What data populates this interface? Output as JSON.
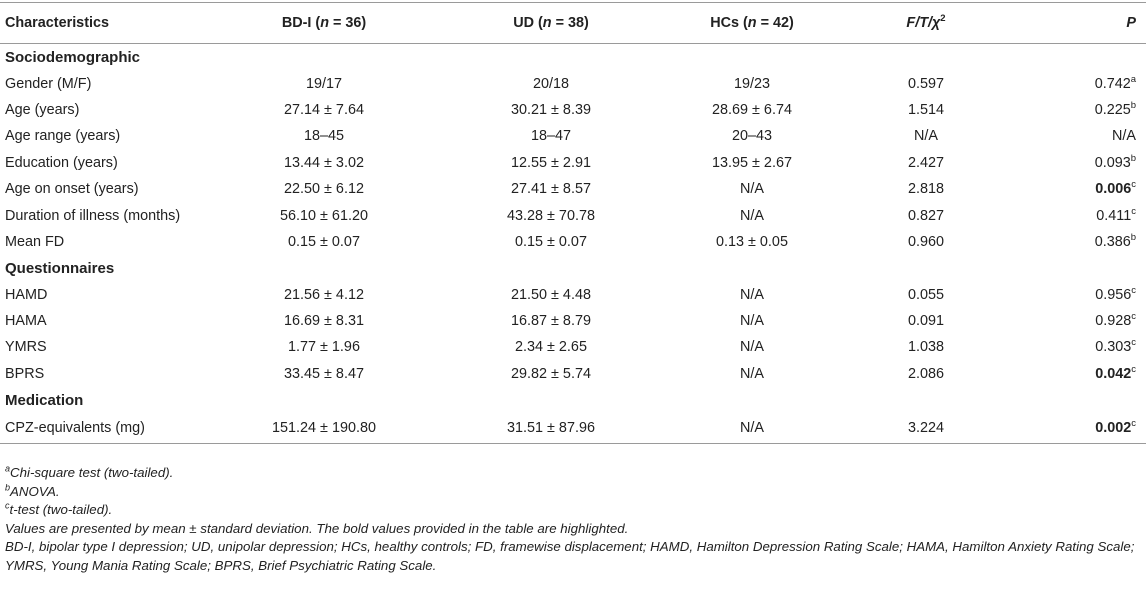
{
  "table": {
    "headers": [
      {
        "parts": [
          {
            "t": "Characteristics"
          }
        ]
      },
      {
        "parts": [
          {
            "t": "BD-I ("
          },
          {
            "t": "n",
            "i": true
          },
          {
            "t": " = 36)"
          }
        ]
      },
      {
        "parts": [
          {
            "t": "UD ("
          },
          {
            "t": "n",
            "i": true
          },
          {
            "t": " = 38)"
          }
        ]
      },
      {
        "parts": [
          {
            "t": "HCs ("
          },
          {
            "t": "n",
            "i": true
          },
          {
            "t": " = 42)"
          }
        ]
      },
      {
        "parts": [
          {
            "t": "F/T/χ",
            "i": true
          },
          {
            "t": "2",
            "sup": true
          }
        ]
      },
      {
        "parts": [
          {
            "t": "P",
            "i": true
          }
        ]
      }
    ],
    "sections": [
      {
        "title": "Sociodemographic",
        "rows": [
          {
            "label": "Gender (M/F)",
            "bd": "19/17",
            "ud": "20/18",
            "hc": "19/23",
            "stat": "0.597",
            "p": "0.742",
            "p_sup": "a",
            "p_bold": false
          },
          {
            "label": "Age (years)",
            "bd": "27.14 ± 7.64",
            "ud": "30.21 ± 8.39",
            "hc": "28.69 ± 6.74",
            "stat": "1.514",
            "p": "0.225",
            "p_sup": "b",
            "p_bold": false
          },
          {
            "label": "Age range (years)",
            "bd": "18–45",
            "ud": "18–47",
            "hc": "20–43",
            "stat": "N/A",
            "p": "N/A",
            "p_sup": "",
            "p_bold": false
          },
          {
            "label": "Education (years)",
            "bd": "13.44 ± 3.02",
            "ud": "12.55 ± 2.91",
            "hc": "13.95 ± 2.67",
            "stat": "2.427",
            "p": "0.093",
            "p_sup": "b",
            "p_bold": false
          },
          {
            "label": "Age on onset (years)",
            "bd": "22.50 ± 6.12",
            "ud": "27.41 ± 8.57",
            "hc": "N/A",
            "stat": "2.818",
            "p": "0.006",
            "p_sup": "c",
            "p_bold": true
          },
          {
            "label": "Duration of illness (months)",
            "bd": "56.10 ± 61.20",
            "ud": "43.28 ± 70.78",
            "hc": "N/A",
            "stat": "0.827",
            "p": "0.411",
            "p_sup": "c",
            "p_bold": false
          },
          {
            "label": "Mean FD",
            "bd": "0.15 ± 0.07",
            "ud": "0.15 ± 0.07",
            "hc": "0.13 ± 0.05",
            "stat": "0.960",
            "p": "0.386",
            "p_sup": "b",
            "p_bold": false
          }
        ]
      },
      {
        "title": "Questionnaires",
        "rows": [
          {
            "label": "HAMD",
            "bd": "21.56 ± 4.12",
            "ud": "21.50 ± 4.48",
            "hc": "N/A",
            "stat": "0.055",
            "p": "0.956",
            "p_sup": "c",
            "p_bold": false
          },
          {
            "label": "HAMA",
            "bd": "16.69 ± 8.31",
            "ud": "16.87 ± 8.79",
            "hc": "N/A",
            "stat": "0.091",
            "p": "0.928",
            "p_sup": "c",
            "p_bold": false
          },
          {
            "label": "YMRS",
            "bd": "1.77 ± 1.96",
            "ud": "2.34 ± 2.65",
            "hc": "N/A",
            "stat": "1.038",
            "p": "0.303",
            "p_sup": "c",
            "p_bold": false
          },
          {
            "label": "BPRS",
            "bd": "33.45 ± 8.47",
            "ud": "29.82 ± 5.74",
            "hc": "N/A",
            "stat": "2.086",
            "p": "0.042",
            "p_sup": "c",
            "p_bold": true
          }
        ]
      },
      {
        "title": "Medication",
        "rows": [
          {
            "label": "CPZ-equivalents (mg)",
            "bd": "151.24 ± 190.80",
            "ud": "31.51 ± 87.96",
            "hc": "N/A",
            "stat": "3.224",
            "p": "0.002",
            "p_sup": "c",
            "p_bold": true
          }
        ]
      }
    ]
  },
  "footnotes": [
    {
      "sup": "a",
      "text": "Chi-square test (two-tailed)."
    },
    {
      "sup": "b",
      "text": "ANOVA."
    },
    {
      "sup": "c",
      "text": "t-test (two-tailed)."
    },
    {
      "sup": "",
      "text": "Values are presented by mean ± standard deviation. The bold values provided in the table are highlighted."
    },
    {
      "sup": "",
      "text": "BD-I, bipolar type I depression; UD, unipolar depression; HCs, healthy controls; FD, framewise displacement; HAMD, Hamilton Depression Rating Scale; HAMA, Hamilton Anxiety Rating Scale; YMRS, Young Mania Rating Scale; BPRS, Brief Psychiatric Rating Scale."
    }
  ]
}
